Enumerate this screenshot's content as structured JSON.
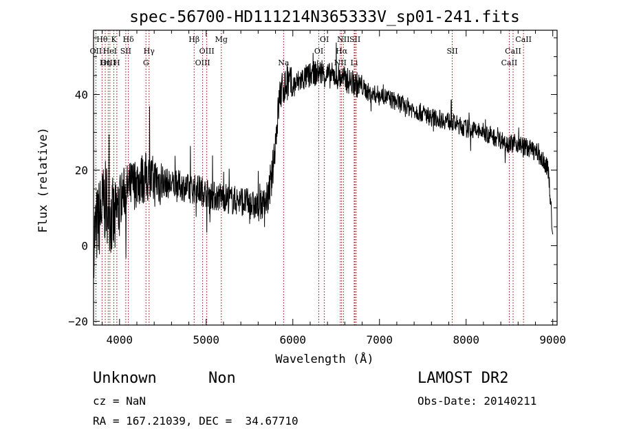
{
  "chart_data": {
    "type": "line",
    "title": "spec-56700-HD111214N365333V_sp01-241.fits",
    "xlabel": "Wavelength (Å)",
    "ylabel": "Flux (relative)",
    "xlim": [
      3700,
      9050
    ],
    "ylim": [
      -21,
      57
    ],
    "xticks": [
      4000,
      5000,
      6000,
      7000,
      8000,
      9000
    ],
    "yticks": [
      -20,
      0,
      20,
      40
    ],
    "xtick_labels": [
      "4000",
      "5000",
      "6000",
      "7000",
      "8000",
      "9000"
    ],
    "ytick_labels": [
      "−20",
      "0",
      "20",
      "40"
    ],
    "grid": false,
    "series": [
      {
        "color": "#000000",
        "x": [
          3700,
          3750,
          3800,
          3850,
          3900,
          3950,
          4000,
          4050,
          4100,
          4150,
          4200,
          4300,
          4400,
          4500,
          4600,
          4700,
          4800,
          4900,
          5000,
          5100,
          5200,
          5300,
          5400,
          5500,
          5600,
          5700,
          5750,
          5800,
          5850,
          5900,
          5950,
          6000,
          6100,
          6200,
          6300,
          6400,
          6500,
          6600,
          6700,
          6800,
          6900,
          7000,
          7200,
          7400,
          7600,
          7800,
          8000,
          8200,
          8400,
          8500,
          8600,
          8700,
          8800,
          8900,
          8950,
          9000
        ],
        "y": [
          2,
          6,
          10,
          12,
          8,
          6,
          12,
          14,
          15,
          16,
          17,
          18,
          17,
          17,
          16,
          16,
          15,
          15,
          14,
          13,
          13,
          12,
          12,
          11,
          10,
          12,
          16,
          28,
          40,
          42,
          43,
          42,
          44,
          45,
          46,
          45,
          45,
          44,
          43,
          42,
          40,
          40,
          38,
          36,
          34,
          33,
          31,
          30,
          28,
          27,
          27,
          26,
          25,
          22,
          20,
          3
        ]
      }
    ],
    "line_labels": [
      {
        "text": "Hθ",
        "x": 3798,
        "row": 1
      },
      {
        "text": "OII",
        "x": 3727,
        "row": 2
      },
      {
        "text": "OIII",
        "x": 3869,
        "row": 3
      },
      {
        "text": "K",
        "x": 3934,
        "row": 1
      },
      {
        "text": "HeI",
        "x": 3889,
        "row": 2
      },
      {
        "text": "Hη",
        "x": 3835,
        "row": 3
      },
      {
        "text": "Hδ",
        "x": 4102,
        "row": 1
      },
      {
        "text": "SII",
        "x": 4072,
        "row": 2
      },
      {
        "text": "H",
        "x": 3969,
        "row": 3
      },
      {
        "text": "Hγ",
        "x": 4341,
        "row": 2
      },
      {
        "text": "G",
        "x": 4305,
        "row": 3
      },
      {
        "text": "Hβ",
        "x": 4861,
        "row": 1
      },
      {
        "text": "OIII",
        "x": 5007,
        "row": 2
      },
      {
        "text": "OIII",
        "x": 4959,
        "row": 3
      },
      {
        "text": "Mg",
        "x": 5175,
        "row": 1
      },
      {
        "text": "Na",
        "x": 5894,
        "row": 3
      },
      {
        "text": "OI",
        "x": 6364,
        "row": 1
      },
      {
        "text": "OI",
        "x": 6300,
        "row": 2
      },
      {
        "text": "NII",
        "x": 6584,
        "row": 1
      },
      {
        "text": "SII",
        "x": 6717,
        "row": 1
      },
      {
        "text": "Hα",
        "x": 6563,
        "row": 2
      },
      {
        "text": "NII",
        "x": 6548,
        "row": 3
      },
      {
        "text": "Li",
        "x": 6708,
        "row": 3
      },
      {
        "text": "SII",
        "x": 7840,
        "row": 2
      },
      {
        "text": "CaII",
        "x": 8662,
        "row": 1
      },
      {
        "text": "CaII",
        "x": 8542,
        "row": 2
      },
      {
        "text": "CaII",
        "x": 8498,
        "row": 3
      }
    ],
    "marker_lines": [
      3727,
      3798,
      3835,
      3869,
      3889,
      3934,
      3969,
      4072,
      4102,
      4305,
      4341,
      4861,
      4959,
      5007,
      5175,
      5894,
      6300,
      6364,
      6548,
      6563,
      6584,
      6708,
      6717,
      6731,
      7840,
      8498,
      8542,
      8662
    ]
  },
  "info": {
    "object_type": "Unknown",
    "subclass": "Non",
    "cz": "cz = NaN",
    "coords": "RA = 167.21039, DEC =  34.67710",
    "survey": "LAMOST DR2",
    "obs_date": "Obs-Date: 20140211"
  },
  "colors": {
    "spectrum": "#000000",
    "marker_lines": "#8b0000",
    "background": "#ffffff"
  }
}
